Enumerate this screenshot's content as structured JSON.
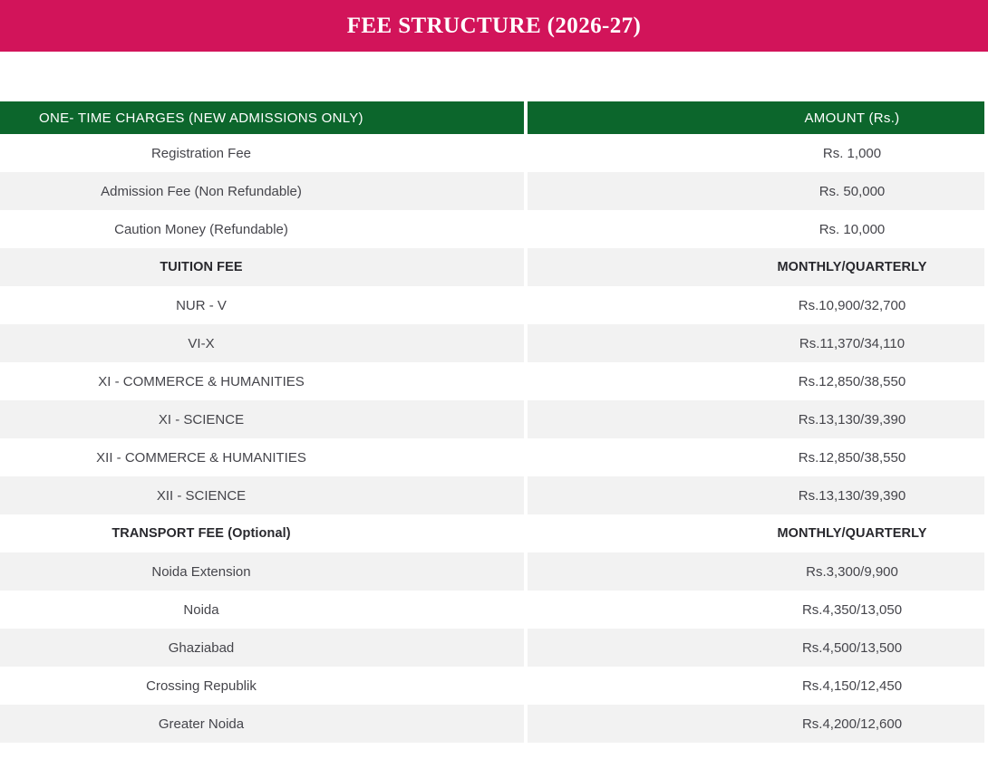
{
  "page": {
    "background": "#ffffff"
  },
  "banner": {
    "title": "FEE STRUCTURE (2026-27)",
    "background_color": "#d2145a",
    "text_color": "#ffffff"
  },
  "table": {
    "header": {
      "left": "ONE- TIME CHARGES (NEW ADMISSIONS ONLY)",
      "right": "AMOUNT (Rs.)",
      "background_color": "#0c662c",
      "text_color": "#ffffff"
    },
    "row_colors": {
      "even_row": "#ffffff",
      "odd_row": "#f2f2f2",
      "text": "#45454b",
      "section_text": "#28282d"
    },
    "rows": [
      {
        "type": "data",
        "label": "Registration Fee",
        "value": "Rs. 1,000"
      },
      {
        "type": "data",
        "label": "Admission Fee (Non Refundable)",
        "value": "Rs. 50,000"
      },
      {
        "type": "data",
        "label": "Caution Money (Refundable)",
        "value": "Rs. 10,000"
      },
      {
        "type": "section",
        "label": "TUITION FEE",
        "value": "MONTHLY/QUARTERLY"
      },
      {
        "type": "data",
        "label": "NUR - V",
        "value": "Rs.10,900/32,700"
      },
      {
        "type": "data",
        "label": "VI-X",
        "value": "Rs.11,370/34,110"
      },
      {
        "type": "data",
        "label": "XI - COMMERCE & HUMANITIES",
        "value": "Rs.12,850/38,550"
      },
      {
        "type": "data",
        "label": "XI - SCIENCE",
        "value": "Rs.13,130/39,390"
      },
      {
        "type": "data",
        "label": "XII - COMMERCE & HUMANITIES",
        "value": "Rs.12,850/38,550"
      },
      {
        "type": "data",
        "label": "XII - SCIENCE",
        "value": "Rs.13,130/39,390"
      },
      {
        "type": "section",
        "label": "TRANSPORT FEE (Optional)",
        "value": "MONTHLY/QUARTERLY"
      },
      {
        "type": "data",
        "label": "Noida Extension",
        "value": "Rs.3,300/9,900"
      },
      {
        "type": "data",
        "label": "Noida",
        "value": "Rs.4,350/13,050"
      },
      {
        "type": "data",
        "label": "Ghaziabad",
        "value": "Rs.4,500/13,500"
      },
      {
        "type": "data",
        "label": "Crossing Republik",
        "value": "Rs.4,150/12,450"
      },
      {
        "type": "data",
        "label": "Greater Noida",
        "value": "Rs.4,200/12,600"
      }
    ]
  }
}
